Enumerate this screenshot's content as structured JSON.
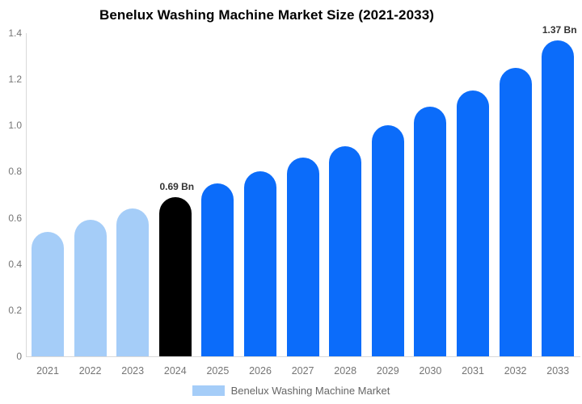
{
  "chart_data": {
    "type": "bar",
    "title": "Benelux Washing Machine Market Size (2021-2033)",
    "categories": [
      "2021",
      "2022",
      "2023",
      "2024",
      "2025",
      "2026",
      "2027",
      "2028",
      "2029",
      "2030",
      "2031",
      "2032",
      "2033"
    ],
    "values": [
      0.54,
      0.59,
      0.64,
      0.69,
      0.75,
      0.8,
      0.86,
      0.91,
      1.0,
      1.08,
      1.15,
      1.25,
      1.37
    ],
    "bar_colors": [
      "#A5CDF8",
      "#A5CDF8",
      "#A5CDF8",
      "#000000",
      "#0B6CFA",
      "#0B6CFA",
      "#0B6CFA",
      "#0B6CFA",
      "#0B6CFA",
      "#0B6CFA",
      "#0B6CFA",
      "#0B6CFA",
      "#0B6CFA"
    ],
    "xlabel": "",
    "ylabel": "",
    "ylim": [
      0,
      1.4
    ],
    "ytick_values": [
      0,
      0.2,
      0.4,
      0.6,
      0.8,
      1.0,
      1.2,
      1.4
    ],
    "ytick_labels": [
      "0",
      "0.2",
      "0.4",
      "0.6",
      "0.8",
      "1.0",
      "1.2",
      "1.4"
    ],
    "grid": false,
    "legend_position": "bottom",
    "annotations": [
      {
        "category": "2024",
        "text": "0.69 Bn"
      },
      {
        "category": "2033",
        "text": "1.37 Bn"
      }
    ],
    "legend": [
      {
        "label": "Benelux Washing Machine Market",
        "color": "#A5CDF8"
      }
    ]
  },
  "colors": {
    "axis_line": "#d9d9d9",
    "tick_text": "#757575",
    "annotation_text": "#333333",
    "title_text": "#000000",
    "legend_text": "#666666",
    "background": "#ffffff"
  }
}
